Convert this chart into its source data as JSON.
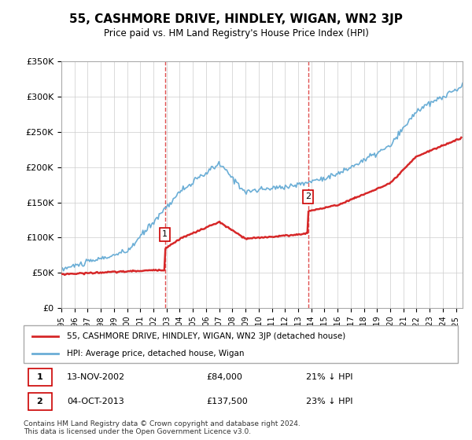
{
  "title": "55, CASHMORE DRIVE, HINDLEY, WIGAN, WN2 3JP",
  "subtitle": "Price paid vs. HM Land Registry's House Price Index (HPI)",
  "ylabel_ticks": [
    "£0",
    "£50K",
    "£100K",
    "£150K",
    "£200K",
    "£250K",
    "£300K",
    "£350K"
  ],
  "ylim": [
    0,
    350000
  ],
  "xlim_start": 1995.0,
  "xlim_end": 2025.5,
  "hpi_color": "#6baed6",
  "price_color": "#d62728",
  "marker1_date": 2002.87,
  "marker1_price": 84000,
  "marker2_date": 2013.75,
  "marker2_price": 137500,
  "vline_color": "#e05050",
  "legend_label1": "55, CASHMORE DRIVE, HINDLEY, WIGAN, WN2 3JP (detached house)",
  "legend_label2": "HPI: Average price, detached house, Wigan",
  "table_row1": [
    "1",
    "13-NOV-2002",
    "£84,000",
    "21% ↓ HPI"
  ],
  "table_row2": [
    "2",
    "04-OCT-2013",
    "£137,500",
    "23% ↓ HPI"
  ],
  "footer": "Contains HM Land Registry data © Crown copyright and database right 2024.\nThis data is licensed under the Open Government Licence v3.0.",
  "background_color": "#ffffff",
  "grid_color": "#cccccc"
}
